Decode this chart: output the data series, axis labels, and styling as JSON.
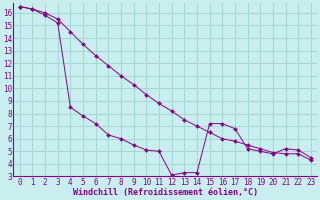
{
  "xlabel": "Windchill (Refroidissement éolien,°C)",
  "bg_color": "#c8eef0",
  "grid_color": "#a0d4cc",
  "line_color": "#880088",
  "spine_color": "#880088",
  "xlim": [
    -0.5,
    23.5
  ],
  "ylim": [
    3.0,
    16.8
  ],
  "yticks": [
    3,
    4,
    5,
    6,
    7,
    8,
    9,
    10,
    11,
    12,
    13,
    14,
    15,
    16
  ],
  "xticks": [
    0,
    1,
    2,
    3,
    4,
    5,
    6,
    7,
    8,
    9,
    10,
    11,
    12,
    13,
    14,
    15,
    16,
    17,
    18,
    19,
    20,
    21,
    22,
    23
  ],
  "series1_x": [
    0,
    1,
    2,
    3,
    4,
    5,
    6,
    7,
    8,
    9,
    10,
    11,
    12,
    13,
    14,
    15,
    16,
    17,
    18,
    19,
    20,
    21,
    22,
    23
  ],
  "series1_y": [
    16.5,
    16.3,
    15.8,
    15.2,
    8.5,
    7.8,
    7.2,
    6.3,
    6.0,
    5.5,
    5.1,
    5.0,
    3.1,
    3.3,
    3.3,
    7.2,
    7.2,
    6.8,
    5.2,
    5.0,
    4.8,
    5.2,
    5.1,
    4.5
  ],
  "series2_x": [
    0,
    1,
    2,
    3,
    4,
    5,
    6,
    7,
    8,
    9,
    10,
    11,
    12,
    13,
    14,
    15,
    16,
    17,
    18,
    19,
    20,
    21,
    22,
    23
  ],
  "series2_y": [
    16.5,
    16.3,
    16.0,
    15.5,
    14.5,
    13.5,
    12.6,
    11.8,
    11.0,
    10.3,
    9.5,
    8.8,
    8.2,
    7.5,
    7.0,
    6.5,
    6.0,
    5.8,
    5.5,
    5.2,
    4.9,
    4.8,
    4.8,
    4.3
  ],
  "tick_fontsize": 5.5,
  "xlabel_fontsize": 6.0
}
